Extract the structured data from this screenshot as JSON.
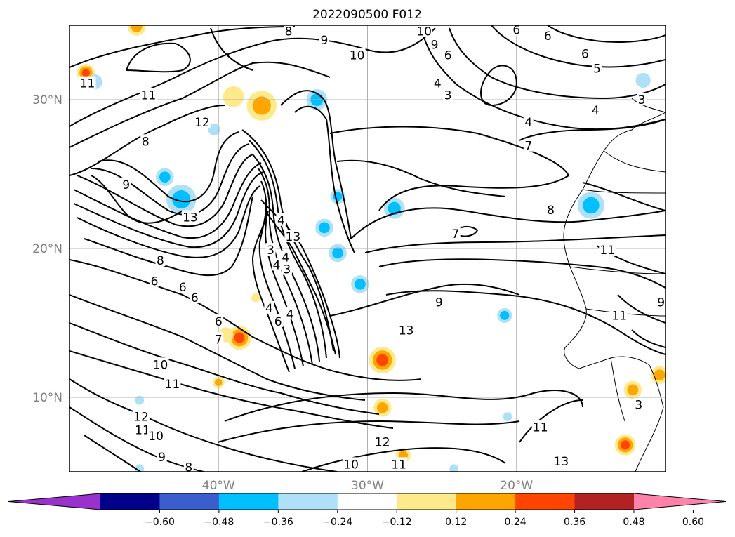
{
  "chart_data": {
    "type": "contour_map",
    "title": "2022090500 F012",
    "map": {
      "lon_range": [
        -50,
        -10
      ],
      "lat_range": [
        5,
        35
      ],
      "lat_ticks": [
        {
          "value": 30,
          "label": "30°N"
        },
        {
          "value": 20,
          "label": "20°N"
        },
        {
          "value": 10,
          "label": "10°N"
        }
      ],
      "lon_ticks": [
        {
          "value": -40,
          "label": "40°W"
        },
        {
          "value": -30,
          "label": "30°W"
        },
        {
          "value": -20,
          "label": "20°W"
        }
      ],
      "grid": true
    },
    "contour_labels": [
      {
        "text": "11",
        "lon": -48.8,
        "lat": 31.1
      },
      {
        "text": "11",
        "lon": -44.7,
        "lat": 30.3
      },
      {
        "text": "12",
        "lon": -41.1,
        "lat": 28.5
      },
      {
        "text": "8",
        "lon": -44.9,
        "lat": 27.2
      },
      {
        "text": "9",
        "lon": -46.2,
        "lat": 24.3
      },
      {
        "text": "13",
        "lon": -41.9,
        "lat": 22.1
      },
      {
        "text": "8",
        "lon": -43.9,
        "lat": 19.2
      },
      {
        "text": "6",
        "lon": -44.3,
        "lat": 17.8
      },
      {
        "text": "6",
        "lon": -42.4,
        "lat": 17.4
      },
      {
        "text": "6",
        "lon": -41.6,
        "lat": 16.7
      },
      {
        "text": "4",
        "lon": -35.8,
        "lat": 21.9
      },
      {
        "text": "13",
        "lon": -35.0,
        "lat": 20.8
      },
      {
        "text": "3",
        "lon": -36.5,
        "lat": 19.9
      },
      {
        "text": "4",
        "lon": -36.1,
        "lat": 18.9
      },
      {
        "text": "4",
        "lon": -35.5,
        "lat": 19.4
      },
      {
        "text": "3",
        "lon": -35.4,
        "lat": 18.6
      },
      {
        "text": "4",
        "lon": -36.6,
        "lat": 16.0
      },
      {
        "text": "4",
        "lon": -35.2,
        "lat": 15.6
      },
      {
        "text": "6",
        "lon": -36.0,
        "lat": 15.1
      },
      {
        "text": "6",
        "lon": -40.0,
        "lat": 15.1
      },
      {
        "text": "7",
        "lon": -40.0,
        "lat": 13.9
      },
      {
        "text": "10",
        "lon": -43.9,
        "lat": 12.2
      },
      {
        "text": "11",
        "lon": -43.1,
        "lat": 10.9
      },
      {
        "text": "12",
        "lon": -45.2,
        "lat": 8.7
      },
      {
        "text": "11",
        "lon": -45.1,
        "lat": 7.8
      },
      {
        "text": "10",
        "lon": -44.2,
        "lat": 7.4
      },
      {
        "text": "9",
        "lon": -43.8,
        "lat": 6.0
      },
      {
        "text": "8",
        "lon": -42.0,
        "lat": 5.3
      },
      {
        "text": "8",
        "lon": -35.3,
        "lat": 34.6
      },
      {
        "text": "9",
        "lon": -32.9,
        "lat": 34.0
      },
      {
        "text": "10",
        "lon": -30.7,
        "lat": 33.0
      },
      {
        "text": "10",
        "lon": -26.2,
        "lat": 34.6
      },
      {
        "text": "9",
        "lon": -25.5,
        "lat": 33.7
      },
      {
        "text": "6",
        "lon": -24.6,
        "lat": 33.0
      },
      {
        "text": "4",
        "lon": -25.3,
        "lat": 31.1
      },
      {
        "text": "3",
        "lon": -24.6,
        "lat": 30.3
      },
      {
        "text": "6",
        "lon": -20.0,
        "lat": 34.7
      },
      {
        "text": "6",
        "lon": -17.9,
        "lat": 34.3
      },
      {
        "text": "6",
        "lon": -15.4,
        "lat": 33.1
      },
      {
        "text": "5",
        "lon": -14.6,
        "lat": 32.1
      },
      {
        "text": "3",
        "lon": -11.6,
        "lat": 30.0
      },
      {
        "text": "4",
        "lon": -14.7,
        "lat": 29.3
      },
      {
        "text": "4",
        "lon": -19.2,
        "lat": 28.5
      },
      {
        "text": "7",
        "lon": -19.2,
        "lat": 26.9
      },
      {
        "text": "8",
        "lon": -17.7,
        "lat": 22.6
      },
      {
        "text": "7",
        "lon": -24.1,
        "lat": 21.0
      },
      {
        "text": "11",
        "lon": -13.9,
        "lat": 19.9
      },
      {
        "text": "9",
        "lon": -10.3,
        "lat": 16.4
      },
      {
        "text": "11",
        "lon": -13.1,
        "lat": 15.5
      },
      {
        "text": "9",
        "lon": -25.2,
        "lat": 16.4
      },
      {
        "text": "13",
        "lon": -27.4,
        "lat": 14.5
      },
      {
        "text": "12",
        "lon": -29.0,
        "lat": 7.0
      },
      {
        "text": "10",
        "lon": -31.1,
        "lat": 5.5
      },
      {
        "text": "11",
        "lon": -27.9,
        "lat": 5.5
      },
      {
        "text": "11",
        "lon": -18.4,
        "lat": 8.0
      },
      {
        "text": "13",
        "lon": -17.0,
        "lat": 5.7
      },
      {
        "text": "3",
        "lon": -11.8,
        "lat": 9.5
      }
    ],
    "shaded_anomalies": [
      {
        "lon": -48.9,
        "lat": 31.8,
        "value": 0.4,
        "r": 0.6
      },
      {
        "lon": -45.5,
        "lat": 34.9,
        "value": 0.25,
        "r": 0.6
      },
      {
        "lon": -37.1,
        "lat": 29.6,
        "value": 0.26,
        "r": 1.0
      },
      {
        "lon": -39.0,
        "lat": 30.2,
        "value": 0.15,
        "r": 0.7
      },
      {
        "lon": -33.4,
        "lat": 30.0,
        "value": -0.35,
        "r": 0.7
      },
      {
        "lon": -42.5,
        "lat": 23.3,
        "value": -0.33,
        "r": 1.0
      },
      {
        "lon": -43.6,
        "lat": 24.8,
        "value": -0.25,
        "r": 0.6
      },
      {
        "lon": -28.2,
        "lat": 22.7,
        "value": -0.35,
        "r": 0.7
      },
      {
        "lon": -32.0,
        "lat": 23.5,
        "value": -0.25,
        "r": 0.5
      },
      {
        "lon": -32.9,
        "lat": 21.4,
        "value": -0.25,
        "r": 0.6
      },
      {
        "lon": -32.0,
        "lat": 19.7,
        "value": -0.3,
        "r": 0.6
      },
      {
        "lon": -30.5,
        "lat": 17.6,
        "value": -0.35,
        "r": 0.6
      },
      {
        "lon": -15.0,
        "lat": 22.9,
        "value": -0.3,
        "r": 0.9
      },
      {
        "lon": -11.5,
        "lat": 31.3,
        "value": -0.22,
        "r": 0.5
      },
      {
        "lon": -20.8,
        "lat": 15.5,
        "value": -0.3,
        "r": 0.5
      },
      {
        "lon": -48.3,
        "lat": 31.2,
        "value": -0.2,
        "r": 0.5
      },
      {
        "lon": -40.3,
        "lat": 28.0,
        "value": -0.2,
        "r": 0.4
      },
      {
        "lon": -38.6,
        "lat": 14.0,
        "value": 0.38,
        "r": 0.8
      },
      {
        "lon": -39.5,
        "lat": 14.2,
        "value": 0.2,
        "r": 0.5
      },
      {
        "lon": -40.0,
        "lat": 11.0,
        "value": 0.25,
        "r": 0.4
      },
      {
        "lon": -37.5,
        "lat": 16.7,
        "value": 0.2,
        "r": 0.3
      },
      {
        "lon": -29.0,
        "lat": 12.5,
        "value": 0.42,
        "r": 0.9
      },
      {
        "lon": -29.0,
        "lat": 9.3,
        "value": 0.3,
        "r": 0.6
      },
      {
        "lon": -27.6,
        "lat": 6.1,
        "value": 0.35,
        "r": 0.5
      },
      {
        "lon": -12.2,
        "lat": 10.5,
        "value": 0.3,
        "r": 0.6
      },
      {
        "lon": -10.4,
        "lat": 11.5,
        "value": 0.32,
        "r": 0.6
      },
      {
        "lon": -12.7,
        "lat": 6.8,
        "value": 0.38,
        "r": 0.7
      },
      {
        "lon": -45.3,
        "lat": 9.8,
        "value": -0.2,
        "r": 0.3
      },
      {
        "lon": -20.6,
        "lat": 8.7,
        "value": -0.2,
        "r": 0.3
      },
      {
        "lon": -24.2,
        "lat": 5.2,
        "value": -0.2,
        "r": 0.3
      },
      {
        "lon": -45.3,
        "lat": 5.2,
        "value": -0.2,
        "r": 0.3
      }
    ],
    "colorbar": {
      "boundaries": [
        -0.72,
        -0.6,
        -0.48,
        -0.36,
        -0.24,
        -0.12,
        0.12,
        0.24,
        0.36,
        0.48,
        0.6,
        0.72
      ],
      "colors": [
        "#9932cc",
        "#00008b",
        "#3a5fcd",
        "#00bfff",
        "#aee0f7",
        "#ffffff",
        "#fee98b",
        "#ffa500",
        "#ff4500",
        "#b22222",
        "#ff82ab"
      ],
      "extend": "both",
      "tick_labels": [
        "−0.60",
        "−0.48",
        "−0.36",
        "−0.24",
        "−0.12",
        "0.12",
        "0.24",
        "0.36",
        "0.48",
        "0.60"
      ]
    }
  }
}
